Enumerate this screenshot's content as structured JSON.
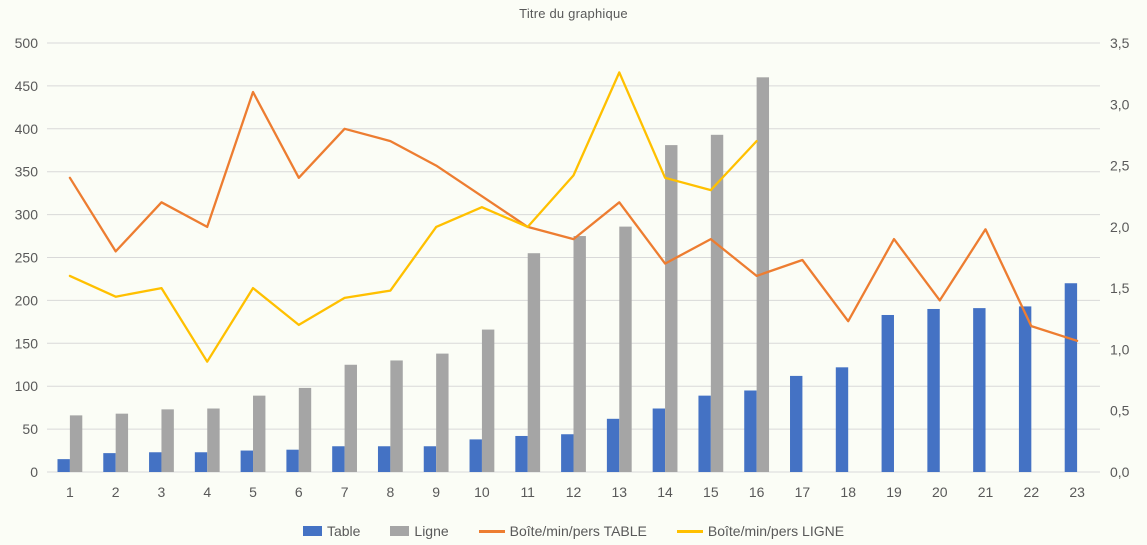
{
  "title": "Titre du graphique",
  "chart_data": {
    "type": "combo-bar-line",
    "title": "Titre du graphique",
    "grid": true,
    "legend_position": "bottom",
    "categories": [
      "1",
      "2",
      "3",
      "4",
      "5",
      "6",
      "7",
      "8",
      "9",
      "10",
      "11",
      "12",
      "13",
      "14",
      "15",
      "16",
      "17",
      "18",
      "19",
      "20",
      "21",
      "22",
      "23"
    ],
    "series": [
      {
        "name": "Table",
        "type": "bar",
        "axis": "left",
        "color": "#4472C4",
        "values": [
          15,
          22,
          23,
          23,
          25,
          26,
          30,
          30,
          30,
          38,
          42,
          44,
          62,
          74,
          89,
          95,
          112,
          122,
          183,
          190,
          191,
          193,
          220
        ]
      },
      {
        "name": "Ligne",
        "type": "bar",
        "axis": "left",
        "color": "#A5A5A5",
        "values": [
          66,
          68,
          73,
          74,
          89,
          98,
          125,
          130,
          138,
          166,
          255,
          275,
          286,
          381,
          393,
          460,
          null,
          null,
          null,
          null,
          null,
          null,
          null
        ]
      },
      {
        "name": "Boîte/min/pers TABLE",
        "type": "line",
        "axis": "right",
        "color": "#ED7D31",
        "values": [
          2.4,
          1.8,
          2.2,
          2.0,
          3.1,
          2.4,
          2.8,
          2.7,
          2.5,
          2.25,
          2.0,
          1.9,
          2.2,
          1.7,
          1.9,
          1.6,
          1.73,
          1.23,
          1.9,
          1.4,
          1.98,
          1.19,
          1.07
        ]
      },
      {
        "name": "Boîte/min/pers LIGNE",
        "type": "line",
        "axis": "right",
        "color": "#FFC000",
        "values": [
          1.6,
          1.43,
          1.5,
          0.9,
          1.5,
          1.2,
          1.42,
          1.48,
          2.0,
          2.16,
          2.0,
          2.42,
          3.26,
          2.4,
          2.3,
          2.7,
          null,
          null,
          null,
          null,
          null,
          null,
          null
        ]
      }
    ],
    "axes": {
      "left": {
        "min": 0,
        "max": 500,
        "step": 50,
        "tick_labels": [
          "0",
          "50",
          "100",
          "150",
          "200",
          "250",
          "300",
          "350",
          "400",
          "450",
          "500"
        ]
      },
      "right": {
        "min": 0,
        "max": 3.5,
        "step": 0.5,
        "tick_labels": [
          "0,0",
          "0,5",
          "1,0",
          "1,5",
          "2,0",
          "2,5",
          "3,0",
          "3,5"
        ]
      }
    },
    "gridline_color": "#d9d9d9",
    "axis_text_color": "#595959"
  }
}
